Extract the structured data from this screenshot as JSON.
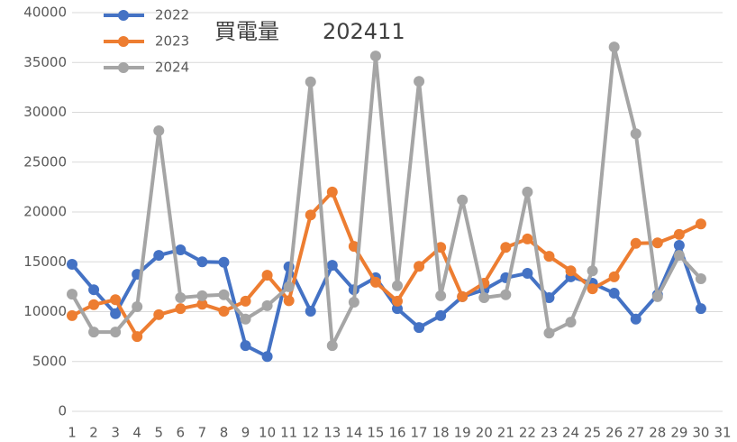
{
  "chart_data": {
    "type": "line",
    "title": "買電量　　202411",
    "categories": [
      "1",
      "2",
      "3",
      "4",
      "5",
      "6",
      "7",
      "8",
      "9",
      "10",
      "11",
      "12",
      "13",
      "14",
      "15",
      "16",
      "17",
      "18",
      "19",
      "20",
      "21",
      "22",
      "23",
      "24",
      "25",
      "26",
      "27",
      "28",
      "29",
      "30",
      "31"
    ],
    "series": [
      {
        "name": "2022",
        "color": "#4472c4",
        "values": [
          14750,
          12200,
          9800,
          13750,
          15650,
          16200,
          15000,
          14950,
          6600,
          5500,
          14500,
          10050,
          14650,
          12200,
          13400,
          10300,
          8400,
          9600,
          11500,
          12200,
          13400,
          13850,
          11400,
          13500,
          12850,
          11850,
          9250,
          11700,
          16650,
          10300,
          null
        ]
      },
      {
        "name": "2023",
        "color": "#ed7d31",
        "values": [
          9600,
          10700,
          11200,
          7500,
          9700,
          10300,
          10750,
          10050,
          11050,
          13650,
          11100,
          19700,
          22000,
          16550,
          12950,
          11050,
          14550,
          16450,
          11500,
          12850,
          16450,
          17300,
          15550,
          14100,
          12300,
          13500,
          16850,
          16900,
          17750,
          18800,
          null
        ]
      },
      {
        "name": "2024",
        "color": "#a5a5a5",
        "values": [
          11750,
          7950,
          7950,
          10500,
          28150,
          11400,
          11600,
          11700,
          9250,
          10600,
          12500,
          33050,
          6600,
          10950,
          35650,
          12600,
          33100,
          11600,
          21200,
          11400,
          11700,
          22000,
          7850,
          8950,
          14100,
          36550,
          27850,
          11500,
          15650,
          13300,
          null
        ]
      }
    ],
    "ylim": [
      0,
      40000
    ],
    "yticks": [
      0,
      5000,
      10000,
      15000,
      20000,
      25000,
      30000,
      35000,
      40000
    ],
    "grid": true,
    "legend": "top-left"
  }
}
